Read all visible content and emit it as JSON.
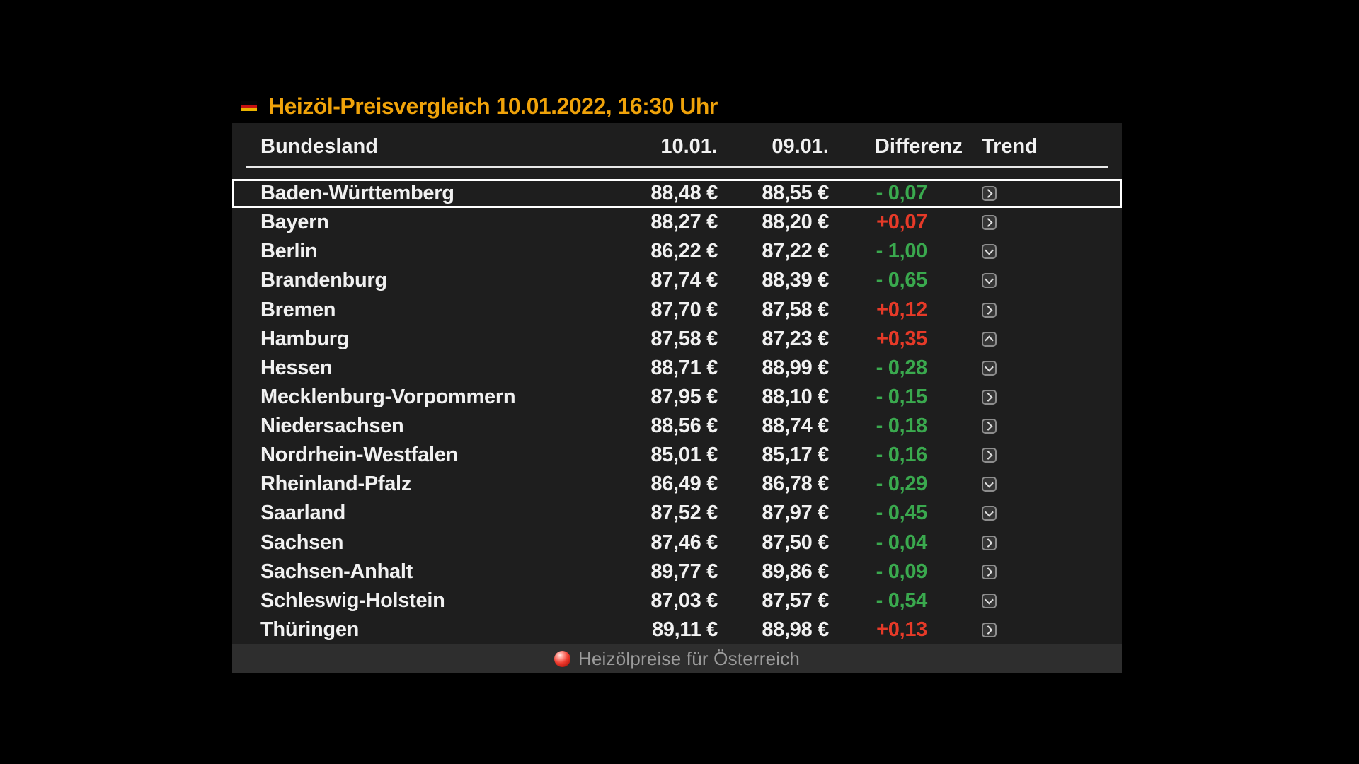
{
  "title": "Heizöl-Preisvergleich 10.01.2022, 16:30 Uhr",
  "colors": {
    "title_accent": "#f0a30a",
    "negative_diff_green": "#3aa94e",
    "positive_diff_red": "#e63a28",
    "panel_bg": "#1e1e1e",
    "footer_bg": "#2e2e2e",
    "page_bg": "#000000",
    "flag_red": "#c41111",
    "flag_gold": "#e9b200"
  },
  "table": {
    "columns": [
      "Bundesland",
      "10.01.",
      "09.01.",
      "Differenz",
      "Trend"
    ],
    "rows": [
      {
        "state": "Baden-Württemberg",
        "today": "88,48 €",
        "yesterday": "88,55 €",
        "diff": "- 0,07",
        "diff_color": "green",
        "trend": "right",
        "selected": true
      },
      {
        "state": "Bayern",
        "today": "88,27 €",
        "yesterday": "88,20 €",
        "diff": "+0,07",
        "diff_color": "red",
        "trend": "right",
        "selected": false
      },
      {
        "state": "Berlin",
        "today": "86,22 €",
        "yesterday": "87,22 €",
        "diff": "- 1,00",
        "diff_color": "green",
        "trend": "down",
        "selected": false
      },
      {
        "state": "Brandenburg",
        "today": "87,74 €",
        "yesterday": "88,39 €",
        "diff": "- 0,65",
        "diff_color": "green",
        "trend": "down",
        "selected": false
      },
      {
        "state": "Bremen",
        "today": "87,70 €",
        "yesterday": "87,58 €",
        "diff": "+0,12",
        "diff_color": "red",
        "trend": "right",
        "selected": false
      },
      {
        "state": "Hamburg",
        "today": "87,58 €",
        "yesterday": "87,23 €",
        "diff": "+0,35",
        "diff_color": "red",
        "trend": "up",
        "selected": false
      },
      {
        "state": "Hessen",
        "today": "88,71 €",
        "yesterday": "88,99 €",
        "diff": "- 0,28",
        "diff_color": "green",
        "trend": "down",
        "selected": false
      },
      {
        "state": "Mecklenburg-Vorpommern",
        "today": "87,95 €",
        "yesterday": "88,10 €",
        "diff": "- 0,15",
        "diff_color": "green",
        "trend": "right",
        "selected": false
      },
      {
        "state": "Niedersachsen",
        "today": "88,56 €",
        "yesterday": "88,74 €",
        "diff": "- 0,18",
        "diff_color": "green",
        "trend": "right",
        "selected": false
      },
      {
        "state": "Nordrhein-Westfalen",
        "today": "85,01 €",
        "yesterday": "85,17 €",
        "diff": "- 0,16",
        "diff_color": "green",
        "trend": "right",
        "selected": false
      },
      {
        "state": "Rheinland-Pfalz",
        "today": "86,49 €",
        "yesterday": "86,78 €",
        "diff": "- 0,29",
        "diff_color": "green",
        "trend": "down",
        "selected": false
      },
      {
        "state": "Saarland",
        "today": "87,52 €",
        "yesterday": "87,97 €",
        "diff": "- 0,45",
        "diff_color": "green",
        "trend": "down",
        "selected": false
      },
      {
        "state": "Sachsen",
        "today": "87,46 €",
        "yesterday": "87,50 €",
        "diff": "- 0,04",
        "diff_color": "green",
        "trend": "right",
        "selected": false
      },
      {
        "state": "Sachsen-Anhalt",
        "today": "89,77 €",
        "yesterday": "89,86 €",
        "diff": "- 0,09",
        "diff_color": "green",
        "trend": "right",
        "selected": false
      },
      {
        "state": "Schleswig-Holstein",
        "today": "87,03 €",
        "yesterday": "87,57 €",
        "diff": "- 0,54",
        "diff_color": "green",
        "trend": "down",
        "selected": false
      },
      {
        "state": "Thüringen",
        "today": "89,11 €",
        "yesterday": "88,98 €",
        "diff": "+0,13",
        "diff_color": "red",
        "trend": "right",
        "selected": false
      }
    ]
  },
  "footer": {
    "label": "Heizölpreise für Österreich",
    "icon": "red-sphere-icon"
  }
}
